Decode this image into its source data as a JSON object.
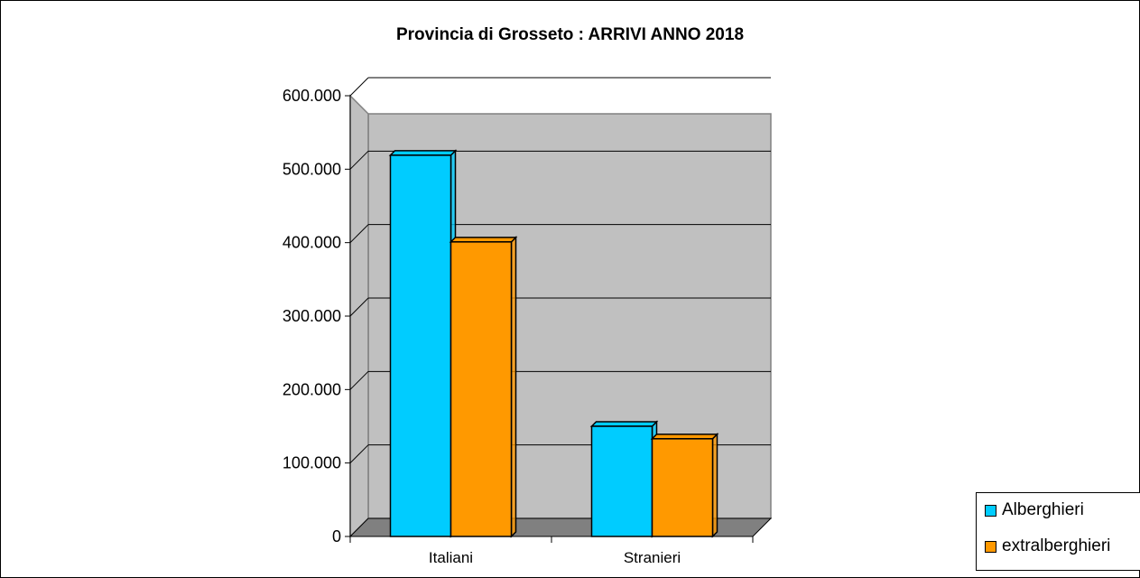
{
  "chart_data": {
    "type": "bar",
    "title": "Provincia di Grosseto : ARRIVI ANNO 2018",
    "categories": [
      "Italiani",
      "Stranieri"
    ],
    "series": [
      {
        "name": "Alberghieri",
        "values": [
          519000,
          150000
        ],
        "color": "#00ccff"
      },
      {
        "name": "extralberghieri",
        "values": [
          401000,
          133000
        ],
        "color": "#ff9900"
      }
    ],
    "ylim": [
      0,
      600000
    ],
    "yticks": [
      "0",
      "100.000",
      "200.000",
      "300.000",
      "400.000",
      "500.000",
      "600.000"
    ],
    "xlabel": "",
    "ylabel": "",
    "grid": true,
    "legend_position": "right",
    "style": "3d-clustered-column"
  }
}
